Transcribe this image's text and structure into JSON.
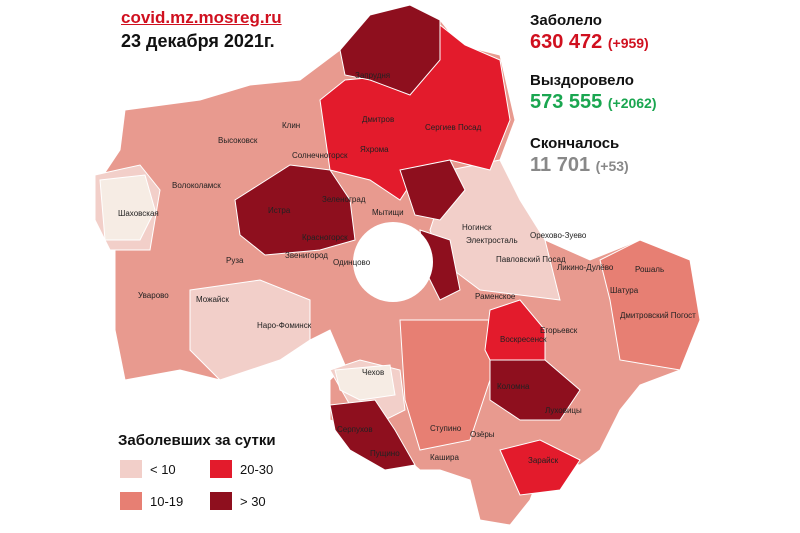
{
  "header": {
    "source": "covid.mz.mosreg.ru",
    "date": "23 декабря 2021г."
  },
  "stats": [
    {
      "label": "Заболело",
      "value": "630 472",
      "delta": "(+959)"
    },
    {
      "label": "Выздоровело",
      "value": "573 555",
      "delta": "(+2062)"
    },
    {
      "label": "Скончалось",
      "value": "11 701",
      "delta": "(+53)"
    }
  ],
  "legend": {
    "title": "Заболевших за сутки",
    "items": [
      {
        "label": "< 10",
        "color": "#f2cfc9"
      },
      {
        "label": "20-30",
        "color": "#e31b2c"
      },
      {
        "label": "10-19",
        "color": "#e77f73"
      },
      {
        "label": "> 30",
        "color": "#8e0f1e"
      }
    ]
  },
  "map_labels": [
    "Запрудня",
    "Клин",
    "Высоковск",
    "Солнечногорск",
    "Дмитров",
    "Яхрома",
    "Сергиев Посад",
    "Шаховская",
    "Волоколамск",
    "Истра",
    "Зеленоград",
    "Красногорск",
    "Мытищи",
    "Ногинск",
    "Электросталь",
    "Павловский Посад",
    "Орехово-Зуево",
    "Ликино-Дулёво",
    "Рошаль",
    "Шатура",
    "Руза",
    "Звенигород",
    "Одинцово",
    "Уварово",
    "Можайск",
    "Наро-Фоминск",
    "Раменское",
    "Воскресенск",
    "Егорьевск",
    "Дмитровский Погост",
    "Чехов",
    "Серпухов",
    "Пущино",
    "Ступино",
    "Озёры",
    "Коломна",
    "Луховицы",
    "Зарайск",
    "Кашира"
  ]
}
